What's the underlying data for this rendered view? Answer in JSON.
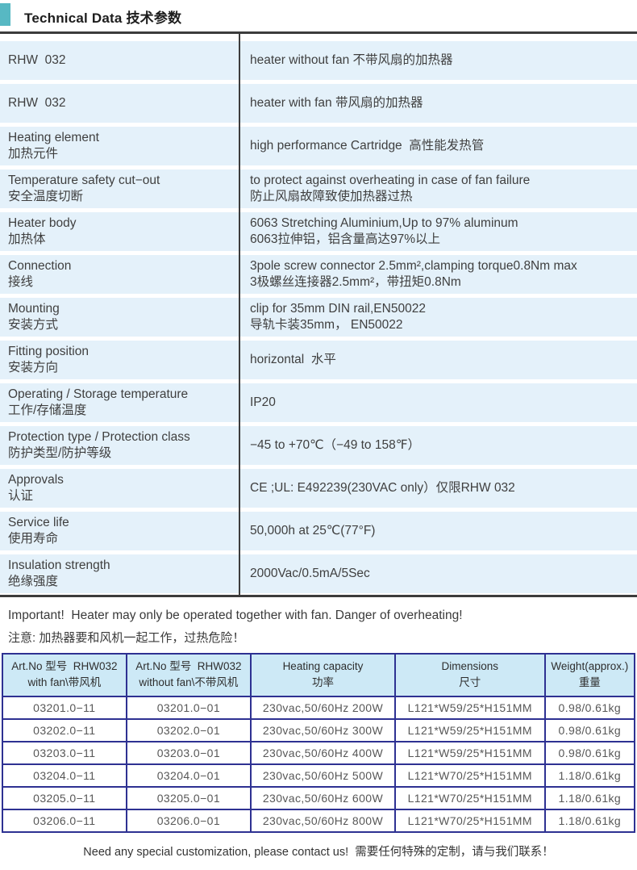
{
  "header": {
    "title": "Technical Data 技术参数",
    "accent_color": "#57b8c3"
  },
  "colors": {
    "spec_row_bg": "#e4f1fa",
    "spec_rule": "#3c3c3c",
    "order_border": "#2e3192",
    "order_header_bg": "#cde9f6"
  },
  "spec_table": {
    "rows": [
      {
        "label": [
          "RHW  032"
        ],
        "value": [
          "heater without fan 不带风扇的加热器"
        ]
      },
      {
        "label": [
          "RHW  032"
        ],
        "value": [
          "heater with fan 带风扇的加热器"
        ]
      },
      {
        "label": [
          "Heating element",
          "加热元件"
        ],
        "value": [
          "high performance Cartridge  高性能发热管"
        ]
      },
      {
        "label": [
          "Temperature safety cut−out",
          "安全温度切断"
        ],
        "value": [
          "to protect against overheating in case of fan failure",
          "防止风扇故障致使加热器过热"
        ]
      },
      {
        "label": [
          "Heater body",
          "加热体"
        ],
        "value": [
          "6063 Stretching Aluminium,Up to 97% aluminum",
          "6063拉伸铝，铝含量高达97%以上"
        ]
      },
      {
        "label": [
          "Connection",
          "接线"
        ],
        "value": [
          "3pole screw connector 2.5mm²,clamping torque0.8Nm max",
          "3极螺丝连接器2.5mm²，带扭矩0.8Nm"
        ]
      },
      {
        "label": [
          "Mounting",
          "安装方式"
        ],
        "value": [
          "clip for 35mm DIN rail,EN50022",
          "导轨卡装35mm， EN50022"
        ]
      },
      {
        "label": [
          "Fitting position",
          "安装方向"
        ],
        "value": [
          "horizontal  水平"
        ]
      },
      {
        "label": [
          "Operating / Storage temperature",
          "工作/存储温度"
        ],
        "value": [
          "IP20"
        ]
      },
      {
        "label": [
          "Protection type / Protection class",
          "防护类型/防护等级"
        ],
        "value": [
          "−45 to +70℃（−49 to 158℉）"
        ]
      },
      {
        "label": [
          "Approvals",
          "认证"
        ],
        "value": [
          "CE ;UL: E492239(230VAC only）仅限RHW 032"
        ]
      },
      {
        "label": [
          "Service life",
          "使用寿命"
        ],
        "value": [
          "50,000h at 25℃(77°F)"
        ]
      },
      {
        "label": [
          "Insulation strength",
          "绝缘强度"
        ],
        "value": [
          "2000Vac/0.5mA/5Sec"
        ]
      }
    ]
  },
  "important": {
    "line1": "Important!  Heater may only be operated together with fan. Danger of overheating!",
    "line2": "注意: 加热器要和风机一起工作，过热危险！"
  },
  "order_table": {
    "headers": [
      {
        "lines": [
          "Art.No 型号  RHW032",
          "with fan\\带风机"
        ]
      },
      {
        "lines": [
          "Art.No 型号  RHW032",
          "without fan\\不带风机"
        ]
      },
      {
        "lines": [
          "Heating capacity",
          "功率"
        ]
      },
      {
        "lines": [
          "Dimensions",
          "尺寸"
        ]
      },
      {
        "lines": [
          "Weight(approx.)",
          "重量"
        ]
      }
    ],
    "rows": [
      [
        "03201.0−11",
        "03201.0−01",
        "230vac,50/60Hz 200W",
        "L121*W59/25*H151MM",
        "0.98/0.61kg"
      ],
      [
        "03202.0−11",
        "03202.0−01",
        "230vac,50/60Hz 300W",
        "L121*W59/25*H151MM",
        "0.98/0.61kg"
      ],
      [
        "03203.0−11",
        "03203.0−01",
        "230vac,50/60Hz 400W",
        "L121*W59/25*H151MM",
        "0.98/0.61kg"
      ],
      [
        "03204.0−11",
        "03204.0−01",
        "230vac,50/60Hz 500W",
        "L121*W70/25*H151MM",
        "1.18/0.61kg"
      ],
      [
        "03205.0−11",
        "03205.0−01",
        "230vac,50/60Hz 600W",
        "L121*W70/25*H151MM",
        "1.18/0.61kg"
      ],
      [
        "03206.0−11",
        "03206.0−01",
        "230vac,50/60Hz 800W",
        "L121*W70/25*H151MM",
        "1.18/0.61kg"
      ]
    ]
  },
  "footer": {
    "note": "Need any special customization, please contact us!  需要任何特殊的定制，请与我们联系！"
  }
}
